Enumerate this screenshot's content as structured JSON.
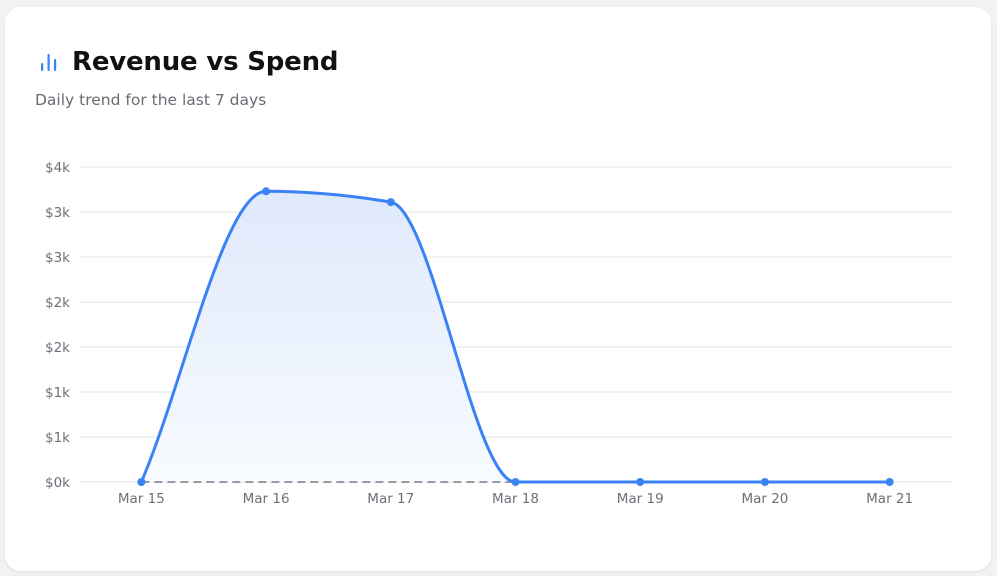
{
  "card": {
    "title": "Revenue vs Spend",
    "subtitle": "Daily trend for the last 7 days",
    "icon": "bar-chart-icon"
  },
  "colors": {
    "revenue_line": "#3b82f6",
    "revenue_fill_top": "#dfe9fb",
    "revenue_fill_bottom": "#f8fbff",
    "spend_line": "#9a9aa5",
    "grid": "#e3e3e6",
    "axis_text": "#6f6f78"
  },
  "chart_data": {
    "type": "area",
    "title": "Revenue vs Spend",
    "subtitle": "Daily trend for the last 7 days",
    "categories": [
      "Mar 15",
      "Mar 16",
      "Mar 17",
      "Mar 18",
      "Mar 19",
      "Mar 20",
      "Mar 21"
    ],
    "series": [
      {
        "name": "Revenue",
        "style": "solid line with area fill and point markers",
        "values": [
          0,
          3230,
          3110,
          0,
          0,
          0,
          0
        ]
      },
      {
        "name": "Spend",
        "style": "dashed line",
        "values": [
          0,
          0,
          0,
          0,
          0,
          0,
          0
        ]
      }
    ],
    "y_ticks": [
      0,
      500,
      1000,
      1500,
      2000,
      2500,
      3000,
      3500
    ],
    "y_tick_labels": [
      "$0k",
      "$1k",
      "$1k",
      "$2k",
      "$2k",
      "$3k",
      "$3k",
      "$4k"
    ],
    "xlabel": "",
    "ylabel": "",
    "ylim": [
      0,
      3500
    ],
    "grid": true,
    "legend": "none"
  }
}
